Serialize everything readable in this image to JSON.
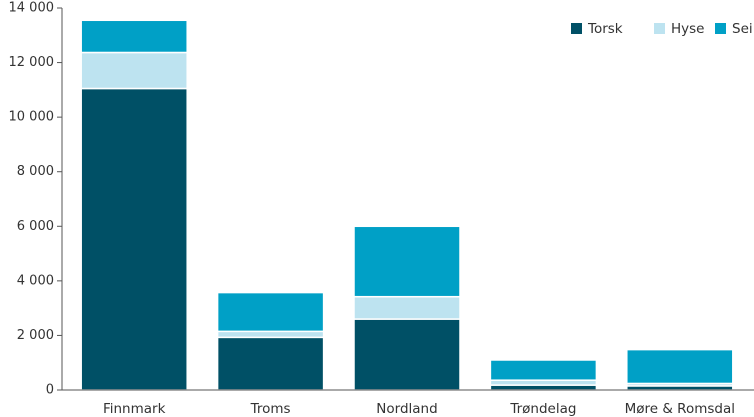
{
  "chart_data": {
    "type": "bar",
    "stacked": true,
    "categories": [
      "Finnmark",
      "Troms",
      "Nordland",
      "Trøndelag",
      "Møre & Romsdal"
    ],
    "series": [
      {
        "name": "Torsk",
        "color": "#005066",
        "values": [
          11050,
          1930,
          2600,
          180,
          150
        ]
      },
      {
        "name": "Hyse",
        "color": "#bde3f0",
        "values": [
          1320,
          220,
          820,
          180,
          90
        ]
      },
      {
        "name": "Sei",
        "color": "#00a0c6",
        "values": [
          1180,
          1420,
          2580,
          740,
          1240
        ]
      }
    ],
    "ylim": [
      0,
      14000
    ],
    "yticks": [
      0,
      2000,
      4000,
      6000,
      8000,
      10000,
      12000,
      14000
    ],
    "ytick_labels": [
      "0",
      "2 000",
      "4 000",
      "6 000",
      "8 000",
      "10 000",
      "12 000",
      "14 000"
    ],
    "grid": false,
    "legend_position": "top-right",
    "title": "",
    "xlabel": "",
    "ylabel": ""
  }
}
